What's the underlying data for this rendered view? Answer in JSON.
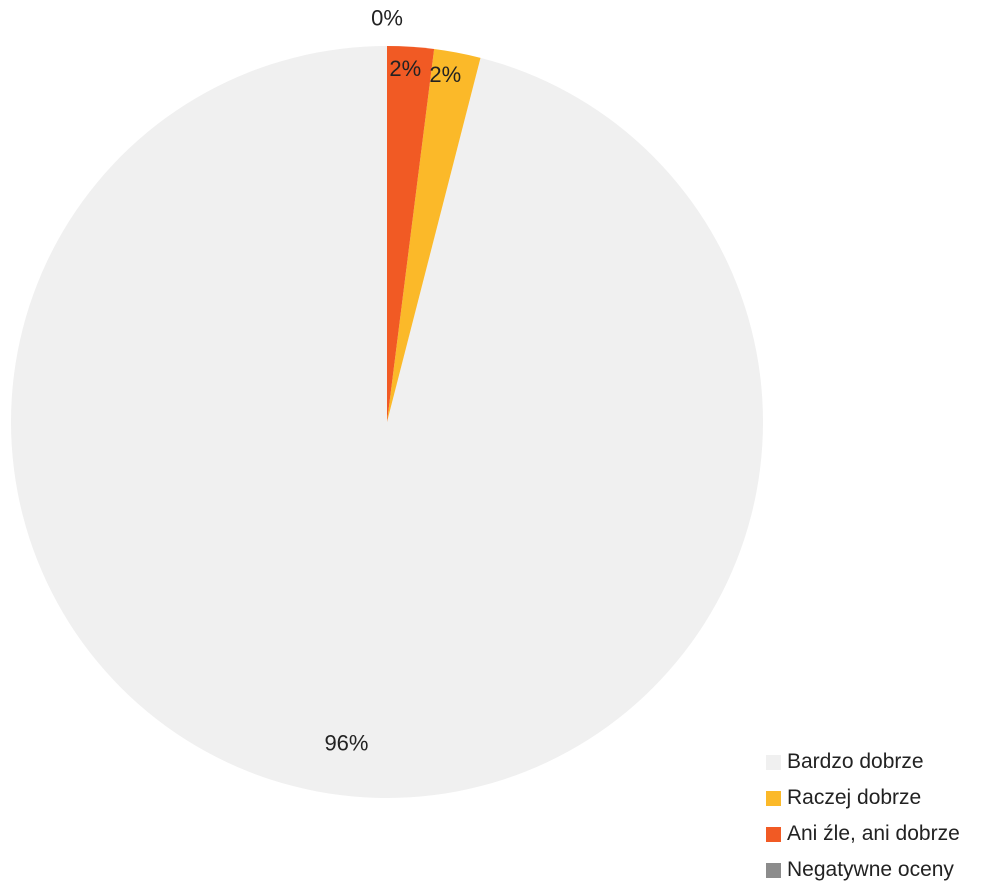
{
  "chart_data": {
    "type": "pie",
    "start_angle": "top",
    "direction": "counterclockwise",
    "legend_position": "bottom-right",
    "slices": [
      {
        "label": "Bardzo dobrze",
        "value": 96,
        "display": "96%",
        "color": "#f0f0f0"
      },
      {
        "label": "Raczej dobrze",
        "value": 2,
        "display": "2%",
        "color": "#fbb929"
      },
      {
        "label": "Ani źle, ani dobrze",
        "value": 2,
        "display": "2%",
        "color": "#f15a24"
      },
      {
        "label": "Negatywne oceny",
        "value": 0,
        "display": "0%",
        "color": "#8c8c8c"
      }
    ]
  }
}
